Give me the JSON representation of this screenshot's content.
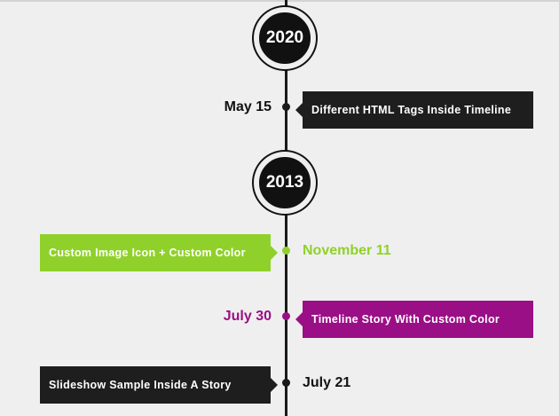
{
  "timeline": {
    "years": [
      {
        "label": "2020"
      },
      {
        "label": "2013"
      }
    ],
    "stories": [
      {
        "date": "May 15",
        "title": "Different HTML Tags Inside Timeline",
        "color": "#1e1e1e"
      },
      {
        "date": "November 11",
        "title": "Custom Image Icon + Custom Color",
        "color": "#8fd12a"
      },
      {
        "date": "July 30",
        "title": "Timeline Story With Custom Color",
        "color": "#9a0f86"
      },
      {
        "date": "July 21",
        "title": "Slideshow Sample Inside A Story",
        "color": "#1e1e1e"
      }
    ]
  }
}
